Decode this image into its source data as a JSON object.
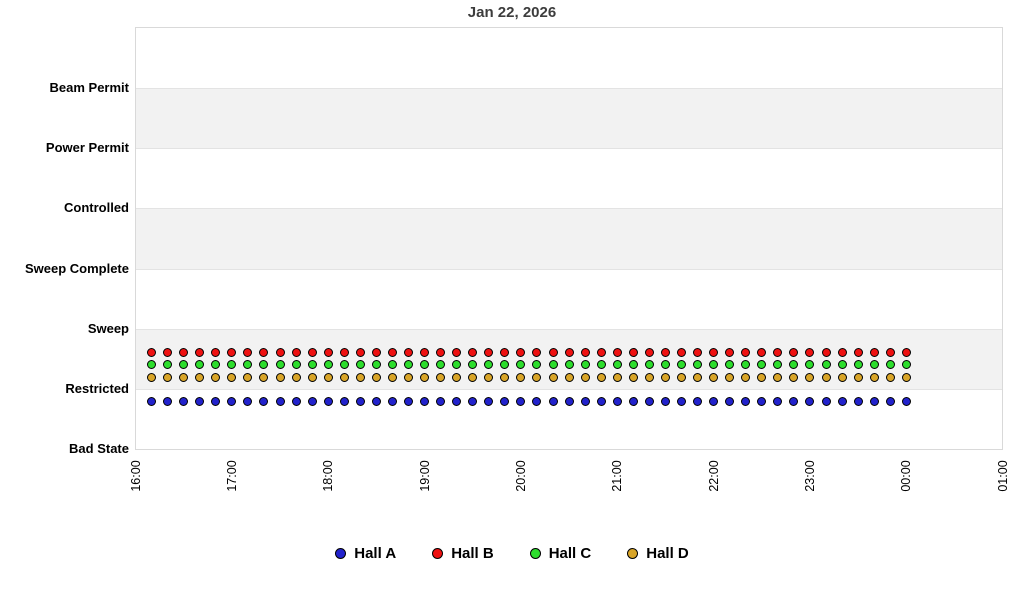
{
  "chart_data": {
    "type": "scatter",
    "title": "Jan 22, 2026",
    "title_color": "#3d3d3d",
    "xlabel": "",
    "ylabel": "",
    "y_categories_top_to_bottom": [
      "Beam Permit",
      "Power Permit",
      "Controlled",
      "Sweep Complete",
      "Sweep",
      "Restricted",
      "Bad State"
    ],
    "x_tick_labels": [
      "16:00",
      "17:00",
      "18:00",
      "19:00",
      "20:00",
      "21:00",
      "22:00",
      "23:00",
      "00:00",
      "01:00"
    ],
    "x_range": [
      "16:00",
      "01:00"
    ],
    "sample_interval_minutes": 10,
    "grid": {
      "horizontal_bands": "alternating",
      "band_color": "#f2f2f2",
      "border_color": "#d9d9d9",
      "vertical_gridlines": false
    },
    "legend_position": "bottom-center",
    "times": [
      "16:10",
      "16:20",
      "16:30",
      "16:40",
      "16:50",
      "17:00",
      "17:10",
      "17:20",
      "17:30",
      "17:40",
      "17:50",
      "18:00",
      "18:10",
      "18:20",
      "18:30",
      "18:40",
      "18:50",
      "19:00",
      "19:10",
      "19:20",
      "19:30",
      "19:40",
      "19:50",
      "20:00",
      "20:10",
      "20:20",
      "20:30",
      "20:40",
      "20:50",
      "21:00",
      "21:10",
      "21:20",
      "21:30",
      "21:40",
      "21:50",
      "22:00",
      "22:10",
      "22:20",
      "22:30",
      "22:40",
      "22:50",
      "23:00",
      "23:10",
      "23:20",
      "23:30",
      "23:40",
      "23:50",
      "00:00"
    ],
    "series": [
      {
        "name": "Hall A",
        "color": "#2222cc",
        "state_constant": "Restricted",
        "row": "below Restricted line",
        "values": "Restricted at every listed time"
      },
      {
        "name": "Hall B",
        "color": "#ee1111",
        "state_constant": "Restricted",
        "row": "upper row above Restricted line",
        "values": "Restricted at every listed time"
      },
      {
        "name": "Hall C",
        "color": "#2ddd2d",
        "state_constant": "Restricted",
        "row": "middle row above Restricted line",
        "values": "Restricted at every listed time"
      },
      {
        "name": "Hall D",
        "color": "#d9a528",
        "state_constant": "Restricted",
        "row": "lower row above Restricted line",
        "values": "Restricted at every listed time"
      }
    ]
  }
}
